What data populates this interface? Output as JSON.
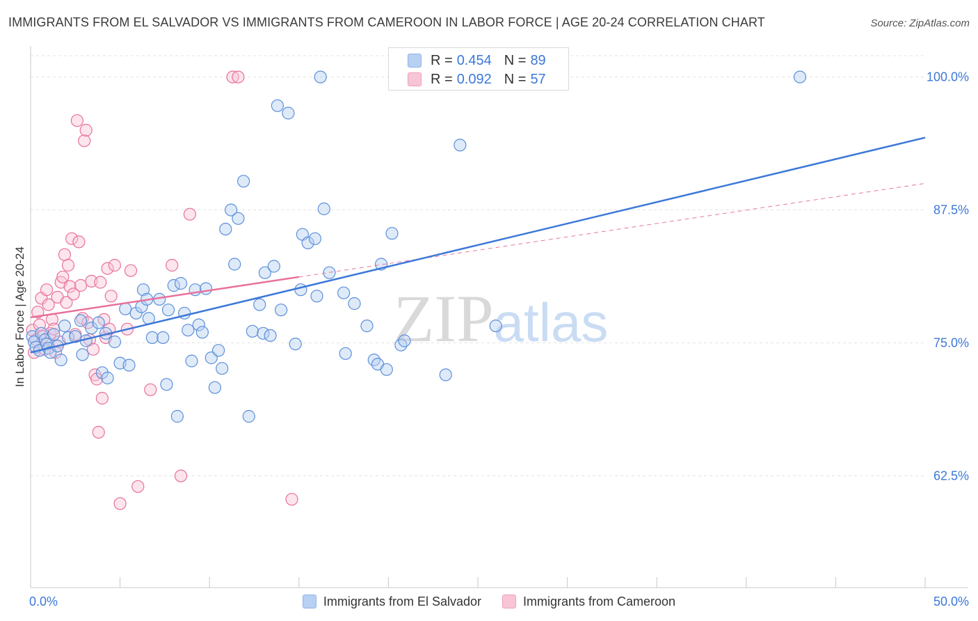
{
  "title": "IMMIGRANTS FROM EL SALVADOR VS IMMIGRANTS FROM CAMEROON IN LABOR FORCE | AGE 20-24 CORRELATION CHART",
  "source": "Source: ZipAtlas.com",
  "watermark": "ZIPatlas",
  "colors": {
    "blue": "#3c78d8",
    "pink": "#e8709a",
    "blue_fill": "#b8d0f2",
    "pink_fill": "#f8c5d6"
  },
  "stats_legend": [
    {
      "r_label": "R =",
      "r_value": "0.454",
      "n_label": "N =",
      "n_value": "89"
    },
    {
      "r_label": "R =",
      "r_value": "0.092",
      "n_label": "N =",
      "n_value": "57"
    }
  ],
  "chart_data": {
    "type": "scatter",
    "title": "IMMIGRANTS FROM EL SALVADOR VS IMMIGRANTS FROM CAMEROON IN LABOR FORCE | AGE 20-24 CORRELATION CHART",
    "xlabel": "",
    "ylabel": "In Labor Force | Age 20-24",
    "xlim": [
      0,
      50
    ],
    "ylim": [
      52,
      102
    ],
    "x_tick_labels": [
      "0.0%",
      "50.0%"
    ],
    "y_ticks": [
      62.5,
      75.0,
      87.5,
      100.0
    ],
    "y_tick_labels": [
      "62.5%",
      "75.0%",
      "87.5%",
      "100.0%"
    ],
    "grid": true,
    "legend_position": "bottom",
    "series": [
      {
        "name": "Immigrants from El Salvador",
        "color": "#3c78d8",
        "trend": {
          "x": [
            0,
            50
          ],
          "y": [
            74.1,
            94.3
          ]
        },
        "points": [
          [
            0.1,
            75.6
          ],
          [
            0.2,
            75.1
          ],
          [
            0.3,
            74.6
          ],
          [
            0.5,
            74.3
          ],
          [
            0.6,
            75.9
          ],
          [
            0.8,
            75.3
          ],
          [
            0.9,
            74.9
          ],
          [
            1.0,
            74.5
          ],
          [
            1.1,
            74.1
          ],
          [
            1.3,
            75.8
          ],
          [
            1.5,
            74.7
          ],
          [
            1.7,
            73.4
          ],
          [
            1.9,
            76.6
          ],
          [
            2.1,
            75.5
          ],
          [
            2.5,
            75.6
          ],
          [
            2.8,
            77.1
          ],
          [
            2.9,
            73.9
          ],
          [
            3.1,
            75.2
          ],
          [
            3.4,
            76.4
          ],
          [
            3.8,
            76.9
          ],
          [
            4.0,
            72.2
          ],
          [
            4.2,
            75.9
          ],
          [
            4.3,
            71.7
          ],
          [
            4.7,
            75.1
          ],
          [
            5.0,
            73.1
          ],
          [
            5.3,
            78.2
          ],
          [
            5.5,
            72.9
          ],
          [
            5.9,
            77.8
          ],
          [
            6.2,
            78.4
          ],
          [
            6.3,
            80.0
          ],
          [
            6.5,
            79.1
          ],
          [
            6.6,
            77.3
          ],
          [
            6.8,
            75.5
          ],
          [
            7.2,
            79.1
          ],
          [
            7.4,
            75.5
          ],
          [
            7.6,
            71.1
          ],
          [
            7.7,
            78.1
          ],
          [
            8.0,
            80.4
          ],
          [
            8.2,
            68.1
          ],
          [
            8.4,
            80.6
          ],
          [
            8.6,
            77.8
          ],
          [
            8.8,
            76.2
          ],
          [
            9.0,
            73.3
          ],
          [
            9.2,
            80.0
          ],
          [
            9.4,
            76.7
          ],
          [
            9.6,
            76.0
          ],
          [
            9.8,
            80.1
          ],
          [
            10.1,
            73.6
          ],
          [
            10.3,
            70.8
          ],
          [
            10.5,
            74.3
          ],
          [
            10.7,
            72.6
          ],
          [
            10.9,
            85.7
          ],
          [
            11.2,
            87.5
          ],
          [
            11.4,
            82.4
          ],
          [
            11.6,
            86.7
          ],
          [
            11.9,
            90.2
          ],
          [
            12.2,
            68.1
          ],
          [
            12.4,
            76.1
          ],
          [
            12.8,
            78.6
          ],
          [
            13.0,
            75.9
          ],
          [
            13.1,
            81.6
          ],
          [
            13.4,
            75.7
          ],
          [
            13.6,
            82.2
          ],
          [
            13.8,
            97.3
          ],
          [
            14.0,
            78.1
          ],
          [
            14.4,
            96.6
          ],
          [
            14.8,
            74.9
          ],
          [
            15.1,
            80.0
          ],
          [
            15.2,
            85.2
          ],
          [
            15.5,
            84.4
          ],
          [
            15.9,
            84.8
          ],
          [
            16.0,
            79.4
          ],
          [
            16.2,
            100.0
          ],
          [
            16.4,
            87.6
          ],
          [
            16.7,
            81.6
          ],
          [
            17.5,
            79.7
          ],
          [
            17.6,
            74.0
          ],
          [
            18.1,
            78.7
          ],
          [
            18.8,
            76.6
          ],
          [
            19.2,
            73.4
          ],
          [
            19.4,
            73.0
          ],
          [
            19.6,
            82.4
          ],
          [
            19.9,
            72.5
          ],
          [
            20.2,
            85.3
          ],
          [
            20.7,
            74.8
          ],
          [
            20.9,
            75.2
          ],
          [
            23.2,
            72.0
          ],
          [
            24.0,
            93.6
          ],
          [
            26.0,
            76.6
          ],
          [
            43.0,
            100.0
          ]
        ]
      },
      {
        "name": "Immigrants from Cameroon",
        "color": "#e8709a",
        "trend": {
          "x": [
            0,
            15
          ],
          "y": [
            77.4,
            81.2
          ]
        },
        "trend_extension": {
          "x": [
            15,
            50
          ],
          "y": [
            81.2,
            90.0
          ]
        },
        "points": [
          [
            0.1,
            76.2
          ],
          [
            0.2,
            74.1
          ],
          [
            0.3,
            75.3
          ],
          [
            0.4,
            77.9
          ],
          [
            0.5,
            76.7
          ],
          [
            0.6,
            79.2
          ],
          [
            0.7,
            75.6
          ],
          [
            0.8,
            74.4
          ],
          [
            0.9,
            80.0
          ],
          [
            1.0,
            78.6
          ],
          [
            1.1,
            75.9
          ],
          [
            1.2,
            77.2
          ],
          [
            1.3,
            76.3
          ],
          [
            1.4,
            74.1
          ],
          [
            1.5,
            79.3
          ],
          [
            1.6,
            75.1
          ],
          [
            1.7,
            80.7
          ],
          [
            1.8,
            81.2
          ],
          [
            1.9,
            83.3
          ],
          [
            2.0,
            78.8
          ],
          [
            2.1,
            82.3
          ],
          [
            2.2,
            80.3
          ],
          [
            2.3,
            84.8
          ],
          [
            2.4,
            79.6
          ],
          [
            2.5,
            75.8
          ],
          [
            2.6,
            95.9
          ],
          [
            2.7,
            84.5
          ],
          [
            2.8,
            80.4
          ],
          [
            2.9,
            77.3
          ],
          [
            3.0,
            94.0
          ],
          [
            3.1,
            95.0
          ],
          [
            3.2,
            76.9
          ],
          [
            3.3,
            75.3
          ],
          [
            3.4,
            80.8
          ],
          [
            3.5,
            74.4
          ],
          [
            3.6,
            72.0
          ],
          [
            3.7,
            71.6
          ],
          [
            3.8,
            66.6
          ],
          [
            3.9,
            80.7
          ],
          [
            4.0,
            69.8
          ],
          [
            4.1,
            77.2
          ],
          [
            4.2,
            75.5
          ],
          [
            4.3,
            82.0
          ],
          [
            4.4,
            76.3
          ],
          [
            4.5,
            79.4
          ],
          [
            4.7,
            82.3
          ],
          [
            5.0,
            59.9
          ],
          [
            5.4,
            76.3
          ],
          [
            5.6,
            81.8
          ],
          [
            6.0,
            61.5
          ],
          [
            6.7,
            70.6
          ],
          [
            7.9,
            82.3
          ],
          [
            8.4,
            62.5
          ],
          [
            8.9,
            87.1
          ],
          [
            11.3,
            100.0
          ],
          [
            11.6,
            100.0
          ],
          [
            14.6,
            60.3
          ]
        ]
      }
    ]
  }
}
